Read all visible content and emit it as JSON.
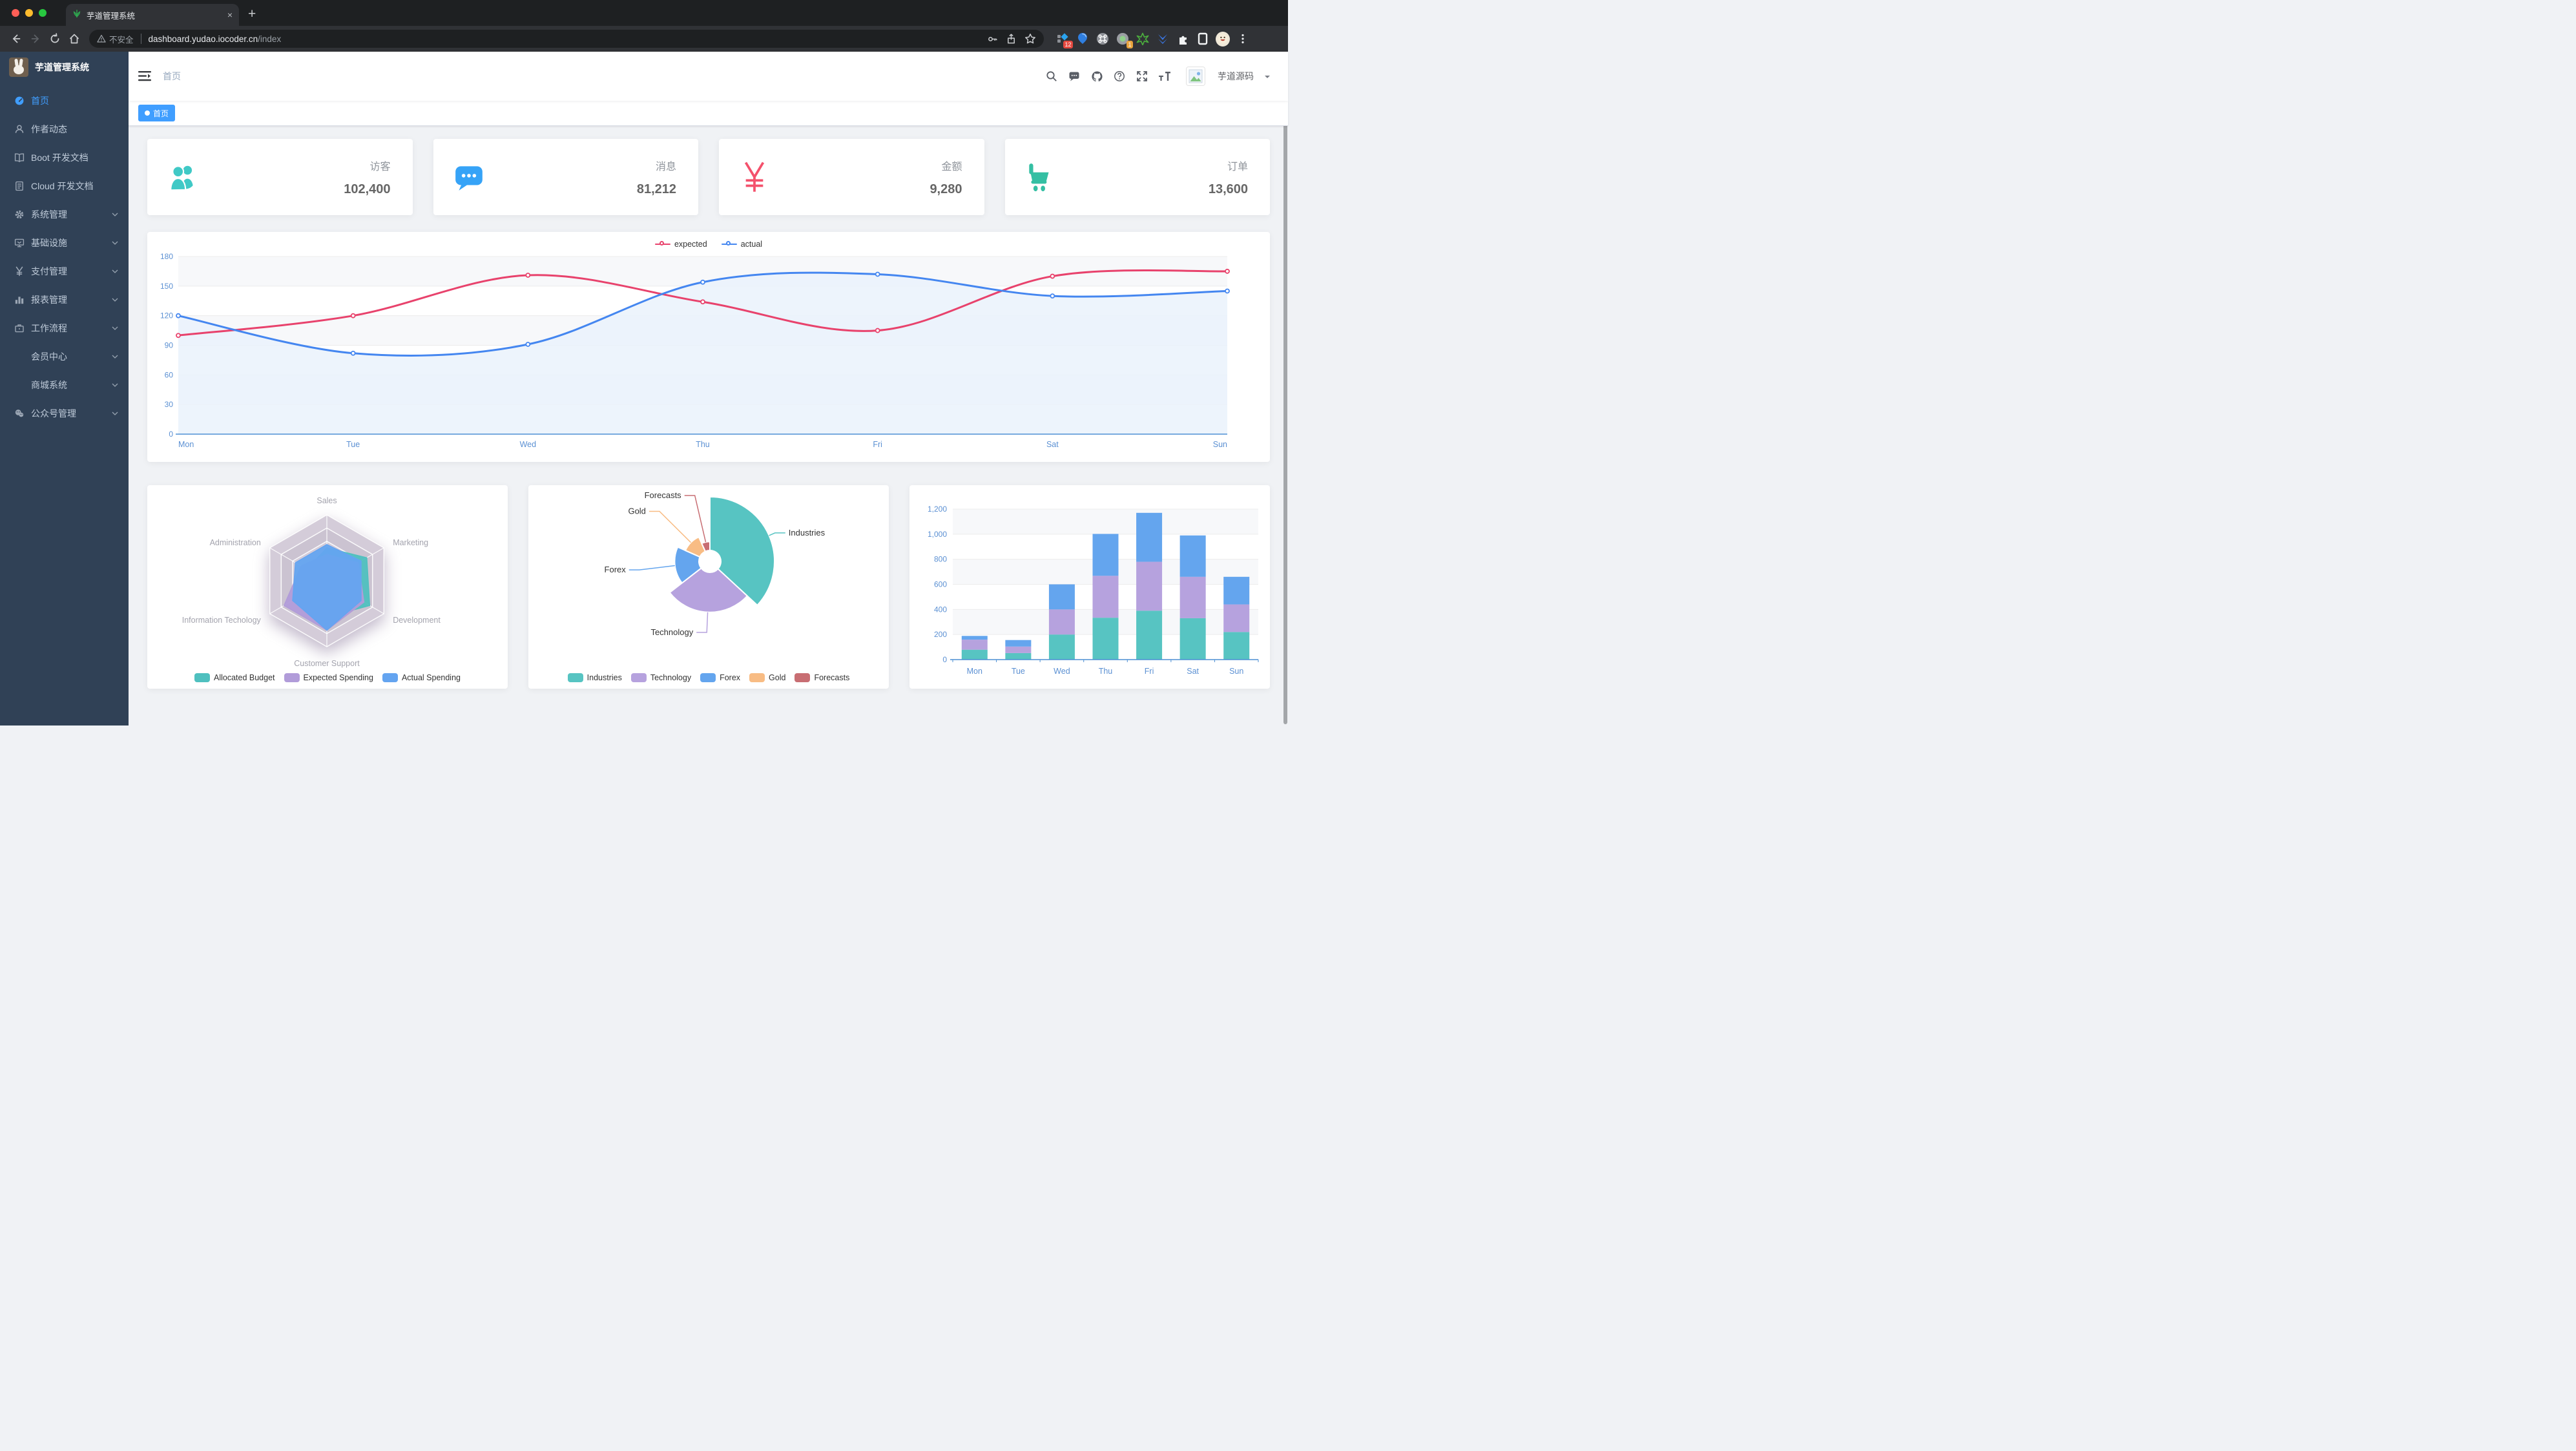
{
  "browser": {
    "tab_title": "芋道管理系统",
    "close_tab": "×",
    "new_tab": "+",
    "security_label": "不安全",
    "url_host": "dashboard.yudao.iocoder.cn",
    "url_path": "/index",
    "extension_badge_a": "12",
    "extension_badge_b": "1"
  },
  "theme": {
    "accent": "#409eff",
    "sidebar_bg": "#304156",
    "menu_text": "#bfcbd9"
  },
  "sidebar": {
    "title": "芋道管理系统",
    "items": [
      {
        "label": "首页",
        "icon": "dashboard-icon",
        "active": true
      },
      {
        "label": "作者动态",
        "icon": "author-icon"
      },
      {
        "label": "Boot 开发文档",
        "icon": "book-icon"
      },
      {
        "label": "Cloud 开发文档",
        "icon": "document-icon"
      },
      {
        "label": "系统管理",
        "icon": "gear-icon",
        "arrow": true
      },
      {
        "label": "基础设施",
        "icon": "monitor-icon",
        "arrow": true
      },
      {
        "label": "支付管理",
        "icon": "yen-icon",
        "arrow": true
      },
      {
        "label": "报表管理",
        "icon": "bar-chart-icon",
        "arrow": true
      },
      {
        "label": "工作流程",
        "icon": "briefcase-icon",
        "arrow": true
      },
      {
        "label": "会员中心",
        "icon": null,
        "arrow": true,
        "indent": true
      },
      {
        "label": "商城系统",
        "icon": null,
        "arrow": true,
        "indent": true
      },
      {
        "label": "公众号管理",
        "icon": "wechat-icon",
        "arrow": true
      }
    ]
  },
  "navbar": {
    "breadcrumb": "首页",
    "username": "芋道源码"
  },
  "tagsview": {
    "active_tag": "首页"
  },
  "stats": [
    {
      "label": "访客",
      "value": "102,400",
      "icon": "peoples-icon",
      "color": "#40c9c6"
    },
    {
      "label": "消息",
      "value": "81,212",
      "icon": "message-icon",
      "color": "#36a3f7"
    },
    {
      "label": "金额",
      "value": "9,280",
      "icon": "money-icon",
      "color": "#f4516c"
    },
    {
      "label": "订单",
      "value": "13,600",
      "icon": "shopping-icon",
      "color": "#34bfa3"
    }
  ],
  "chart_data": [
    {
      "type": "line",
      "categories": [
        "Mon",
        "Tue",
        "Wed",
        "Thu",
        "Fri",
        "Sat",
        "Sun"
      ],
      "series": [
        {
          "name": "expected",
          "color": "#e8426c",
          "values": [
            100,
            120,
            161,
            134,
            105,
            160,
            165
          ]
        },
        {
          "name": "actual",
          "color": "#4486f0",
          "area": "#eaf2fc",
          "values": [
            120,
            82,
            91,
            154,
            162,
            140,
            145
          ]
        }
      ],
      "ylim": [
        0,
        180
      ],
      "yticks": [
        0,
        30,
        60,
        90,
        120,
        150,
        180
      ],
      "legend_position": "top",
      "grid": true
    },
    {
      "type": "radar",
      "indicators": [
        {
          "name": "Sales",
          "max": 10000
        },
        {
          "name": "Marketing",
          "max": 20000
        },
        {
          "name": "Development",
          "max": 20000
        },
        {
          "name": "Customer Support",
          "max": 20000
        },
        {
          "name": "Information Techology",
          "max": 20000
        },
        {
          "name": "Administration",
          "max": 20000
        }
      ],
      "series": [
        {
          "name": "Allocated Budget",
          "color": "#4fc0bf",
          "values": [
            5000,
            14000,
            15000,
            11000,
            12000,
            7000
          ]
        },
        {
          "name": "Expected Spending",
          "color": "#b19cd9",
          "values": [
            4000,
            11000,
            13000,
            15000,
            15000,
            9000
          ]
        },
        {
          "name": "Actual Spending",
          "color": "#64a4f0",
          "values": [
            5500,
            12000,
            12000,
            15000,
            12000,
            11000
          ]
        }
      ],
      "legend_position": "bottom"
    },
    {
      "type": "pie",
      "rose": true,
      "items": [
        {
          "name": "Industries",
          "value": 320,
          "color": "#57c4c2"
        },
        {
          "name": "Technology",
          "value": 240,
          "color": "#b6a2de"
        },
        {
          "name": "Forex",
          "value": 149,
          "color": "#64a5ee"
        },
        {
          "name": "Gold",
          "value": 100,
          "color": "#f8bc84"
        },
        {
          "name": "Forecasts",
          "value": 59,
          "color": "#c86e73"
        }
      ],
      "legend_position": "bottom"
    },
    {
      "type": "bar",
      "stacked": true,
      "categories": [
        "Mon",
        "Tue",
        "Wed",
        "Thu",
        "Fri",
        "Sat",
        "Sun"
      ],
      "series": [
        {
          "color": "#57c4c2",
          "values": [
            79,
            52,
            200,
            334,
            390,
            330,
            220
          ]
        },
        {
          "color": "#b6a2de",
          "values": [
            80,
            52,
            200,
            334,
            390,
            330,
            220
          ]
        },
        {
          "color": "#64a5ee",
          "values": [
            30,
            52,
            200,
            334,
            390,
            330,
            220
          ]
        }
      ],
      "ylim": [
        0,
        1200
      ],
      "yticks": [
        0,
        200,
        400,
        600,
        800,
        1000,
        1200
      ],
      "grid": true
    }
  ]
}
